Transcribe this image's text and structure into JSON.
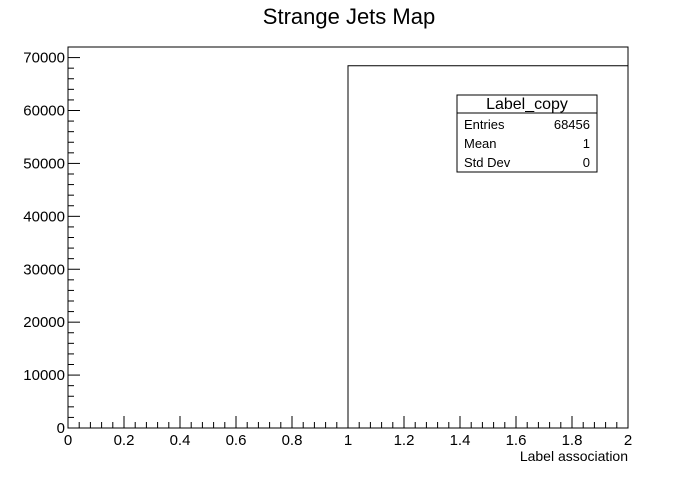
{
  "chart_data": {
    "type": "bar",
    "title": "Strange Jets Map",
    "xlabel": "Label association",
    "ylabel": "",
    "xlim": [
      0,
      2
    ],
    "ylim": [
      0,
      72000
    ],
    "bins": [
      {
        "x_low": 0,
        "x_high": 1,
        "value": 0
      },
      {
        "x_low": 1,
        "x_high": 2,
        "value": 68456
      }
    ],
    "x_ticks": [
      "0",
      "0.2",
      "0.4",
      "0.6",
      "0.8",
      "1",
      "1.2",
      "1.4",
      "1.6",
      "1.8",
      "2"
    ],
    "x_tick_values": [
      0,
      0.2,
      0.4,
      0.6,
      0.8,
      1.0,
      1.2,
      1.4,
      1.6,
      1.8,
      2.0
    ],
    "y_ticks": [
      "0",
      "10000",
      "20000",
      "30000",
      "40000",
      "50000",
      "60000",
      "70000"
    ],
    "y_tick_values": [
      0,
      10000,
      20000,
      30000,
      40000,
      50000,
      60000,
      70000
    ],
    "grid": false,
    "line_color": "#000000",
    "stats_box": {
      "title": "Label_copy",
      "rows": [
        {
          "label": "Entries",
          "value": "68456"
        },
        {
          "label": "Mean",
          "value": "1"
        },
        {
          "label": "Std Dev",
          "value": "0"
        }
      ]
    }
  }
}
